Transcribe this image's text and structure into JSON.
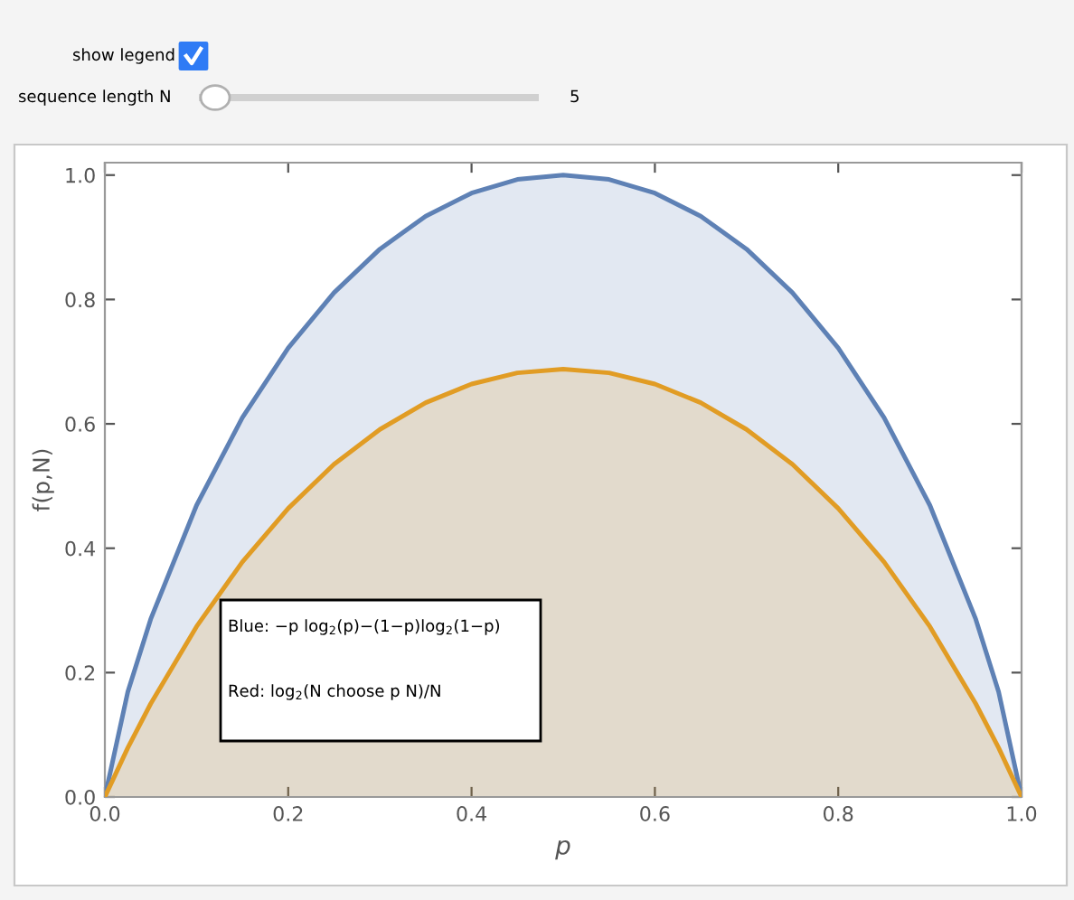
{
  "chart_data": {
    "type": "area",
    "xlabel": "p",
    "ylabel": "f(p,N)",
    "x": [
      0,
      0.025,
      0.05,
      0.1,
      0.15,
      0.2,
      0.25,
      0.3,
      0.35,
      0.4,
      0.45,
      0.5,
      0.55,
      0.6,
      0.65,
      0.7,
      0.75,
      0.8,
      0.85,
      0.9,
      0.95,
      0.975,
      1
    ],
    "series": [
      {
        "color": "#5e81b5",
        "values": [
          0,
          0.169,
          0.286,
          0.469,
          0.61,
          0.722,
          0.811,
          0.881,
          0.934,
          0.971,
          0.993,
          1,
          0.993,
          0.971,
          0.934,
          0.881,
          0.811,
          0.722,
          0.61,
          0.469,
          0.286,
          0.169,
          0
        ]
      },
      {
        "color": "#e19c24",
        "values": [
          0,
          0.079,
          0.15,
          0.274,
          0.378,
          0.464,
          0.535,
          0.591,
          0.634,
          0.664,
          0.682,
          0.688,
          0.682,
          0.664,
          0.634,
          0.591,
          0.535,
          0.464,
          0.378,
          0.274,
          0.15,
          0.079,
          0
        ]
      }
    ],
    "xlim": [
      0,
      1
    ],
    "ylim": [
      0,
      1.02
    ],
    "xticks": [
      {
        "value": 0,
        "label": "0.0"
      },
      0.2,
      0.4,
      0.6,
      0.8,
      {
        "value": 1,
        "label": "1.0"
      }
    ],
    "yticks": [
      {
        "value": 0,
        "label": "0.0"
      },
      0.2,
      0.4,
      0.6,
      0.8,
      {
        "value": 1,
        "label": "1.0"
      }
    ],
    "grid": false,
    "legend": false,
    "annotations": [
      "show legend",
      "sequence length N",
      "5",
      "Blue: −p log$_{2}$(p)−(1−p)log$_{2}$(1−p)",
      "Red: log$_{2}$(N choose p N)/N"
    ]
  }
}
